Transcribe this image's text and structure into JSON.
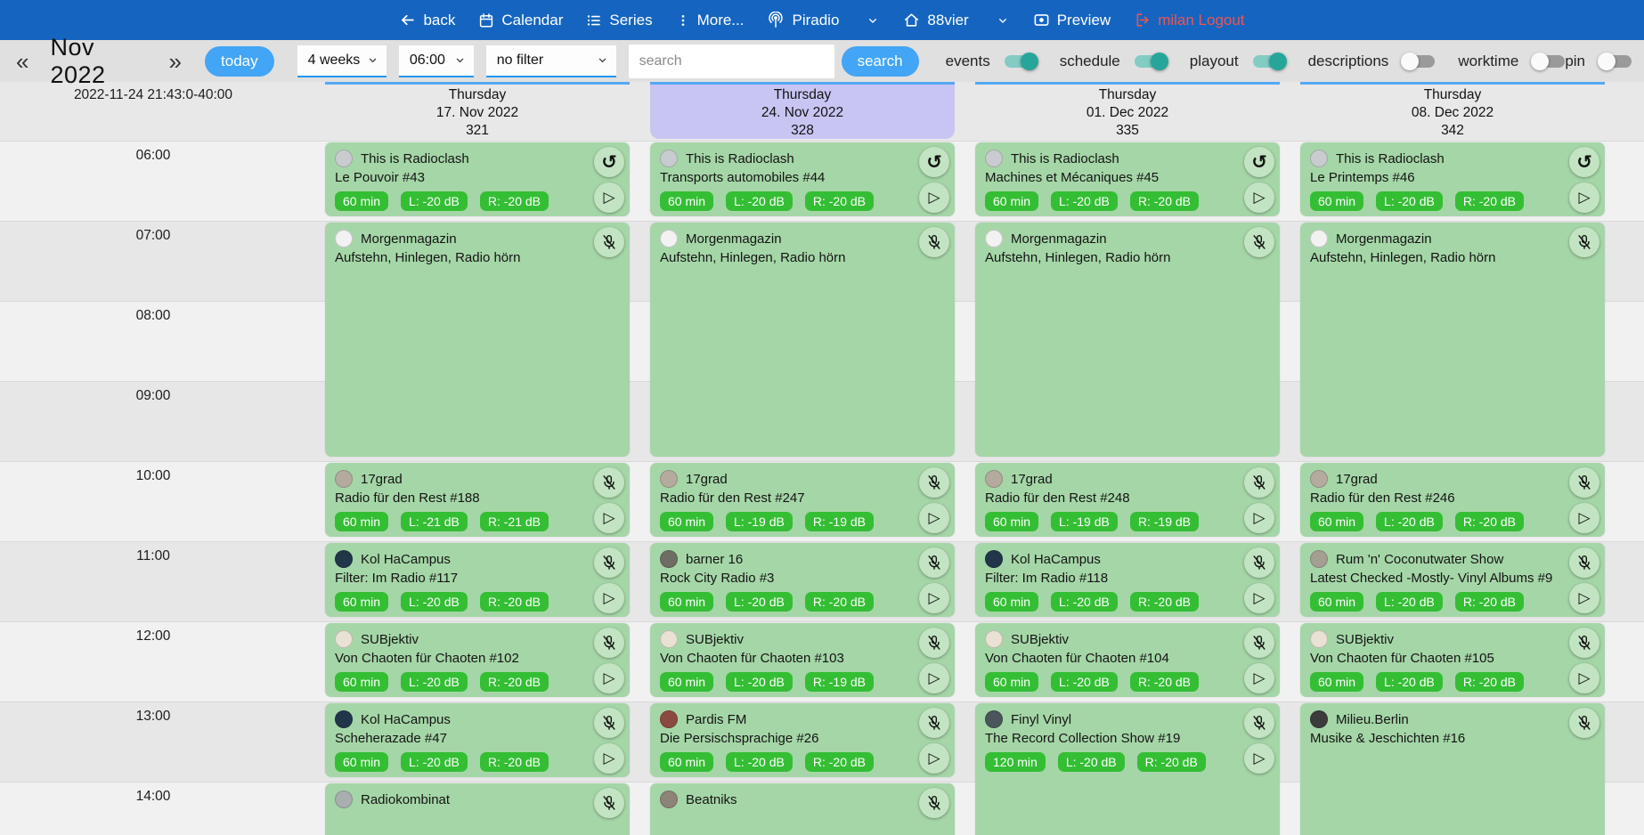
{
  "colors": {
    "navbar": "#1565c0",
    "accent_button": "#42a5f5",
    "select_underline": "#2196f3",
    "toggle_on_thumb": "#26a69a",
    "toggle_on_track": "#82ccc4",
    "highlight_day": "#c8c5f3",
    "event_card": "#a5d6a7",
    "badge": "#34be34",
    "logout_text": "#ef5350",
    "column_topline": "#55a8f5"
  },
  "topnav": {
    "items": {
      "back": "back",
      "calendar": "Calendar",
      "series": "Series",
      "more": "More...",
      "piradio": "Piradio",
      "station": "88vier",
      "preview": "Preview",
      "logout": "milan Logout"
    }
  },
  "toolbar": {
    "prev": "«",
    "next": "»",
    "month": "Nov 2022",
    "today": "today",
    "range_select": "4 weeks",
    "time_select": "06:00",
    "filter_select": "no filter",
    "search_placeholder": "search",
    "search_button": "search",
    "toggles": [
      {
        "label": "events",
        "on": true,
        "far_right": false
      },
      {
        "label": "schedule",
        "on": true,
        "far_right": false
      },
      {
        "label": "playout",
        "on": true,
        "far_right": false
      },
      {
        "label": "descriptions",
        "on": false,
        "far_right": false
      },
      {
        "label": "worktime",
        "on": false,
        "far_right": false
      },
      {
        "label": "pin",
        "on": false,
        "far_right": true
      }
    ]
  },
  "calendar": {
    "timestamp": "2022-11-24 21:43:0-40:00",
    "hours": [
      "06:00",
      "07:00",
      "08:00",
      "09:00",
      "10:00",
      "11:00",
      "12:00",
      "13:00",
      "14:00"
    ],
    "days": [
      {
        "weekday": "Thursday",
        "date": "17. Nov 2022",
        "day_number": "321",
        "highlighted": false,
        "events": [
          {
            "show": "This is Radioclash",
            "title": "Le Pouvoir #43",
            "start": 0,
            "duration": 1,
            "badges": [
              "60 min",
              "L: -20 dB",
              "R: -20 dB"
            ],
            "icons": [
              "replay",
              "play"
            ],
            "avatar": "#c8ccce"
          },
          {
            "show": "Morgenmagazin",
            "title": "Aufstehn, Hinlegen, Radio hörn",
            "start": 1,
            "duration": 3,
            "badges": [],
            "icons": [
              "mic-off"
            ],
            "avatar": "#f2f2f2"
          },
          {
            "show": "17grad",
            "title": "Radio für den Rest #188",
            "start": 4,
            "duration": 1,
            "badges": [
              "60 min",
              "L: -21 dB",
              "R: -21 dB"
            ],
            "icons": [
              "mic-off",
              "play"
            ],
            "avatar": "#b4ab9e"
          },
          {
            "show": "Kol HaCampus",
            "title": "Filter: Im Radio #117",
            "start": 5,
            "duration": 1,
            "badges": [
              "60 min",
              "L: -20 dB",
              "R: -20 dB"
            ],
            "icons": [
              "mic-off",
              "play"
            ],
            "avatar": "#223649"
          },
          {
            "show": "SUBjektiv",
            "title": "Von Chaoten für Chaoten #102",
            "start": 6,
            "duration": 1,
            "badges": [
              "60 min",
              "L: -20 dB",
              "R: -20 dB"
            ],
            "icons": [
              "mic-off",
              "play"
            ],
            "avatar": "#e9e2d4"
          },
          {
            "show": "Kol HaCampus",
            "title": "Scheherazade #47",
            "start": 7,
            "duration": 1,
            "badges": [
              "60 min",
              "L: -20 dB",
              "R: -20 dB"
            ],
            "icons": [
              "mic-off",
              "play"
            ],
            "avatar": "#223649"
          },
          {
            "show": "Radiokombinat",
            "title": "",
            "start": 8,
            "duration": 1,
            "badges": [],
            "icons": [
              "mic-off"
            ],
            "avatar": "#a9aeae"
          }
        ]
      },
      {
        "weekday": "Thursday",
        "date": "24. Nov 2022",
        "day_number": "328",
        "highlighted": true,
        "events": [
          {
            "show": "This is Radioclash",
            "title": "Transports automobiles #44",
            "start": 0,
            "duration": 1,
            "badges": [
              "60 min",
              "L: -20 dB",
              "R: -20 dB"
            ],
            "icons": [
              "replay",
              "play"
            ],
            "avatar": "#c8ccce"
          },
          {
            "show": "Morgenmagazin",
            "title": "Aufstehn, Hinlegen, Radio hörn",
            "start": 1,
            "duration": 3,
            "badges": [],
            "icons": [
              "mic-off"
            ],
            "avatar": "#f2f2f2"
          },
          {
            "show": "17grad",
            "title": "Radio für den Rest #247",
            "start": 4,
            "duration": 1,
            "badges": [
              "60 min",
              "L: -19 dB",
              "R: -19 dB"
            ],
            "icons": [
              "mic-off",
              "play"
            ],
            "avatar": "#b4ab9e"
          },
          {
            "show": "barner 16",
            "title": "Rock City Radio #3",
            "start": 5,
            "duration": 1,
            "badges": [
              "60 min",
              "L: -20 dB",
              "R: -20 dB"
            ],
            "icons": [
              "mic-off",
              "play"
            ],
            "avatar": "#6d6d64"
          },
          {
            "show": "SUBjektiv",
            "title": "Von Chaoten für Chaoten #103",
            "start": 6,
            "duration": 1,
            "badges": [
              "60 min",
              "L: -20 dB",
              "R: -19 dB"
            ],
            "icons": [
              "mic-off",
              "play"
            ],
            "avatar": "#e9e2d4"
          },
          {
            "show": "Pardis FM",
            "title": "Die Persischsprachige #26",
            "start": 7,
            "duration": 1,
            "badges": [
              "60 min",
              "L: -20 dB",
              "R: -20 dB"
            ],
            "icons": [
              "mic-off",
              "play"
            ],
            "avatar": "#8a4a42"
          },
          {
            "show": "Beatniks",
            "title": "",
            "start": 8,
            "duration": 1,
            "badges": [],
            "icons": [
              "mic-off"
            ],
            "avatar": "#8d8478"
          }
        ]
      },
      {
        "weekday": "Thursday",
        "date": "01. Dec 2022",
        "day_number": "335",
        "highlighted": false,
        "events": [
          {
            "show": "This is Radioclash",
            "title": "Machines et Mécaniques #45",
            "start": 0,
            "duration": 1,
            "badges": [
              "60 min",
              "L: -20 dB",
              "R: -20 dB"
            ],
            "icons": [
              "replay",
              "play"
            ],
            "avatar": "#c8ccce"
          },
          {
            "show": "Morgenmagazin",
            "title": "Aufstehn, Hinlegen, Radio hörn",
            "start": 1,
            "duration": 3,
            "badges": [],
            "icons": [
              "mic-off"
            ],
            "avatar": "#f2f2f2"
          },
          {
            "show": "17grad",
            "title": "Radio für den Rest #248",
            "start": 4,
            "duration": 1,
            "badges": [
              "60 min",
              "L: -19 dB",
              "R: -19 dB"
            ],
            "icons": [
              "mic-off",
              "play"
            ],
            "avatar": "#b4ab9e"
          },
          {
            "show": "Kol HaCampus",
            "title": "Filter: Im Radio #118",
            "start": 5,
            "duration": 1,
            "badges": [
              "60 min",
              "L: -20 dB",
              "R: -20 dB"
            ],
            "icons": [
              "mic-off",
              "play"
            ],
            "avatar": "#223649"
          },
          {
            "show": "SUBjektiv",
            "title": "Von Chaoten für Chaoten #104",
            "start": 6,
            "duration": 1,
            "badges": [
              "60 min",
              "L: -20 dB",
              "R: -20 dB"
            ],
            "icons": [
              "mic-off",
              "play"
            ],
            "avatar": "#e9e2d4"
          },
          {
            "show": "Finyl Vinyl",
            "title": "The Record Collection Show #19",
            "start": 7,
            "duration": 2,
            "badges": [
              "120 min",
              "L: -20 dB",
              "R: -20 dB"
            ],
            "icons": [
              "mic-off",
              "play"
            ],
            "avatar": "#49565a"
          }
        ]
      },
      {
        "weekday": "Thursday",
        "date": "08. Dec 2022",
        "day_number": "342",
        "highlighted": false,
        "events": [
          {
            "show": "This is Radioclash",
            "title": "Le Printemps #46",
            "start": 0,
            "duration": 1,
            "badges": [
              "60 min",
              "L: -20 dB",
              "R: -20 dB"
            ],
            "icons": [
              "replay",
              "play"
            ],
            "avatar": "#c8ccce"
          },
          {
            "show": "Morgenmagazin",
            "title": "Aufstehn, Hinlegen, Radio hörn",
            "start": 1,
            "duration": 3,
            "badges": [],
            "icons": [
              "mic-off"
            ],
            "avatar": "#f2f2f2"
          },
          {
            "show": "17grad",
            "title": "Radio für den Rest #246",
            "start": 4,
            "duration": 1,
            "badges": [
              "60 min",
              "L: -20 dB",
              "R: -20 dB"
            ],
            "icons": [
              "mic-off",
              "play"
            ],
            "avatar": "#b4ab9e"
          },
          {
            "show": "Rum 'n' Coconutwater Show",
            "title": "Latest Checked -Mostly- Vinyl Albums #9",
            "start": 5,
            "duration": 1,
            "badges": [
              "60 min",
              "L: -20 dB",
              "R: -20 dB"
            ],
            "icons": [
              "mic-off",
              "play"
            ],
            "avatar": "#a59e93"
          },
          {
            "show": "SUBjektiv",
            "title": "Von Chaoten für Chaoten #105",
            "start": 6,
            "duration": 1,
            "badges": [
              "60 min",
              "L: -20 dB",
              "R: -20 dB"
            ],
            "icons": [
              "mic-off",
              "play"
            ],
            "avatar": "#e9e2d4"
          },
          {
            "show": "Milieu.Berlin",
            "title": "Musike & Jeschichten #16",
            "start": 7,
            "duration": 2,
            "badges": [],
            "icons": [
              "mic-off"
            ],
            "avatar": "#3c3c3c"
          }
        ]
      }
    ]
  }
}
